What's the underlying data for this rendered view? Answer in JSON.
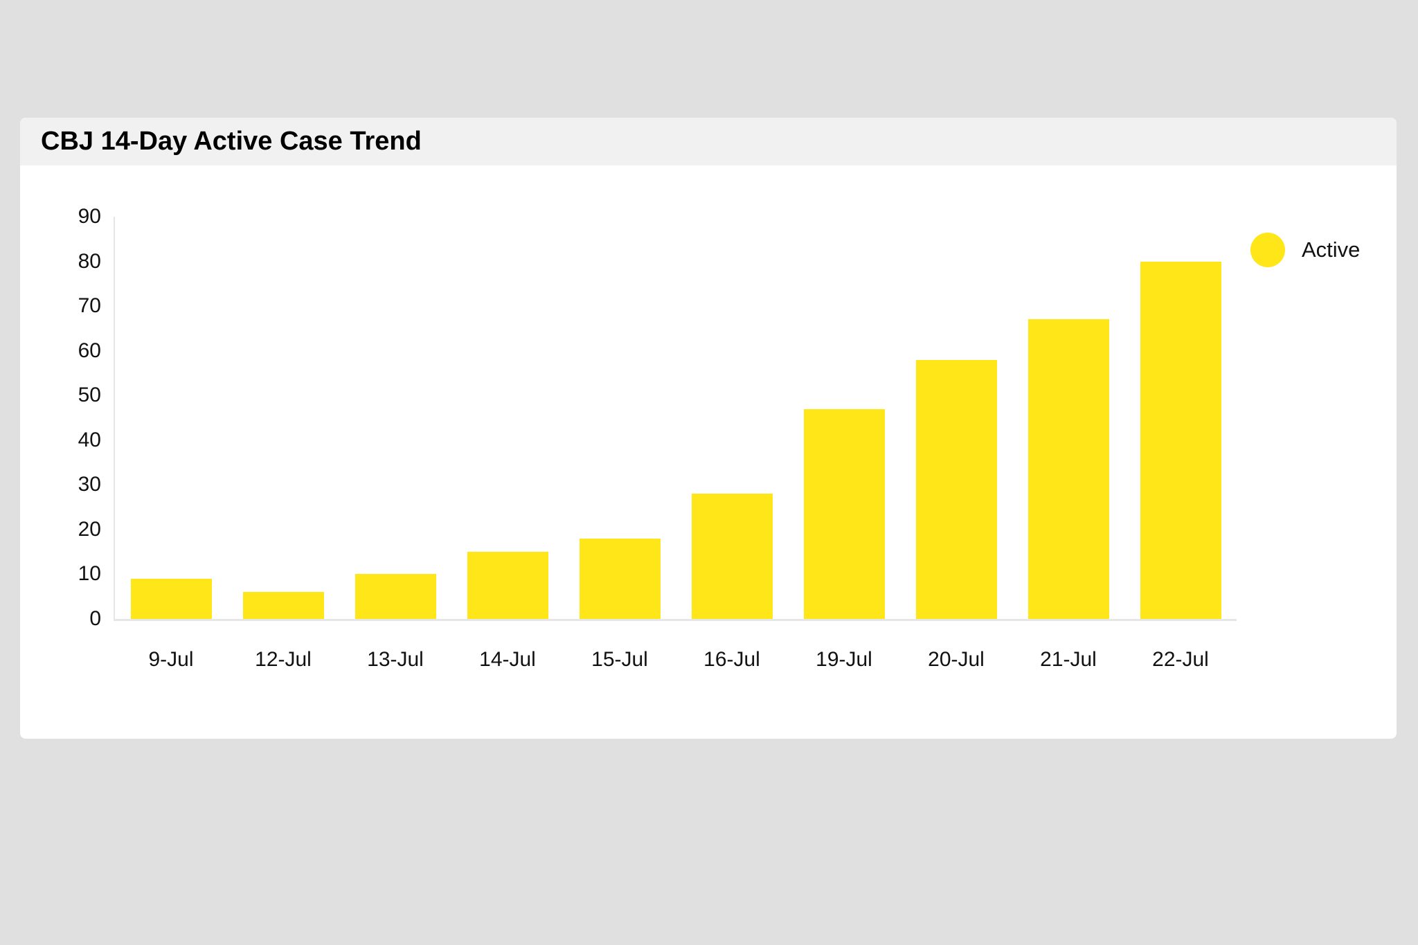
{
  "page": {
    "background_color": "#e0e0e0"
  },
  "card": {
    "title": "CBJ 14-Day Active Case Trend",
    "title_bar_color": "#f1f1f1",
    "background_color": "#ffffff"
  },
  "legend": {
    "label": "Active",
    "swatch_color": "#ffe619"
  },
  "chart_data": {
    "type": "bar",
    "title": "CBJ 14-Day Active Case Trend",
    "categories": [
      "9-Jul",
      "12-Jul",
      "13-Jul",
      "14-Jul",
      "15-Jul",
      "16-Jul",
      "19-Jul",
      "20-Jul",
      "21-Jul",
      "22-Jul"
    ],
    "series": [
      {
        "name": "Active",
        "color": "#ffe619",
        "values": [
          9,
          6,
          10,
          15,
          18,
          28,
          47,
          58,
          67,
          80
        ]
      }
    ],
    "xlabel": "",
    "ylabel": "",
    "ylim": [
      0,
      90
    ],
    "yticks": [
      0,
      10,
      20,
      30,
      40,
      50,
      60,
      70,
      80,
      90
    ],
    "grid": false,
    "legend_position": "right",
    "axis_color": "#e6e6e6",
    "label_color": "#111111"
  }
}
